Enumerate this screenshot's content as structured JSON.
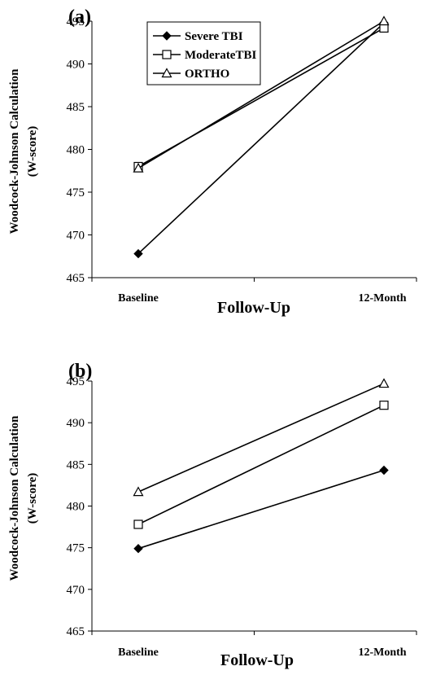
{
  "chart_data": [
    {
      "type": "line",
      "panel_label": "(a)",
      "categories": [
        "Baseline",
        "12-Month"
      ],
      "series": [
        {
          "name": "Severe TBI",
          "marker": "diamond",
          "values": [
            467.8,
            494.8
          ]
        },
        {
          "name": "ModerateTBI",
          "marker": "square",
          "values": [
            478.0,
            494.2
          ]
        },
        {
          "name": "ORTHO",
          "marker": "triangle",
          "values": [
            477.8,
            495.0
          ]
        }
      ],
      "xlabel": "Follow-Up",
      "ylabel": [
        "Woodcock-Johnson Calculation",
        "(W-score)"
      ],
      "ylim": [
        465,
        495
      ],
      "yticks": [
        465,
        470,
        475,
        480,
        485,
        490,
        495
      ],
      "grid": false,
      "legend": "top-left"
    },
    {
      "type": "line",
      "panel_label": "(b)",
      "categories": [
        "Baseline",
        "12-Month"
      ],
      "series": [
        {
          "name": "Severe TBI",
          "marker": "diamond",
          "values": [
            474.9,
            484.3
          ]
        },
        {
          "name": "ModerateTBI",
          "marker": "square",
          "values": [
            477.8,
            492.1
          ]
        },
        {
          "name": "ORTHO",
          "marker": "triangle",
          "values": [
            481.7,
            494.7
          ]
        }
      ],
      "xlabel": "Follow-Up",
      "ylabel": [
        "Woodcock-Johnson Calculation",
        "(W-score)"
      ],
      "ylim": [
        465,
        495
      ],
      "yticks": [
        465,
        470,
        475,
        480,
        485,
        490,
        495
      ],
      "grid": false,
      "legend": "none"
    }
  ]
}
